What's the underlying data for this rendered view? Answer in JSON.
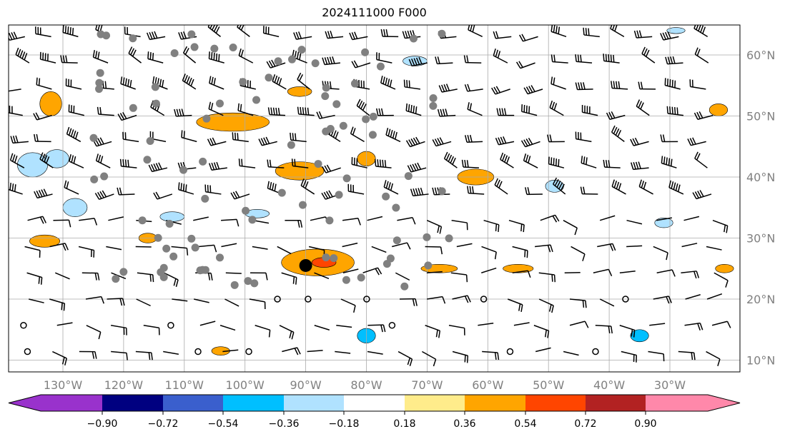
{
  "chart_data": {
    "type": "map",
    "title": "2024111000 F000",
    "projection": "PlateCarree",
    "extent_lon": [
      -139,
      -18.5
    ],
    "extent_lat": [
      8,
      65
    ],
    "lat_ticks": [
      {
        "value": 60,
        "label": "60°N"
      },
      {
        "value": 50,
        "label": "50°N"
      },
      {
        "value": 40,
        "label": "40°N"
      },
      {
        "value": 30,
        "label": "30°N"
      },
      {
        "value": 20,
        "label": "20°N"
      },
      {
        "value": 10,
        "label": "10°N"
      }
    ],
    "lon_ticks": [
      {
        "value": -130,
        "label": "130°W"
      },
      {
        "value": -120,
        "label": "120°W"
      },
      {
        "value": -110,
        "label": "110°W"
      },
      {
        "value": -100,
        "label": "100°W"
      },
      {
        "value": -90,
        "label": "90°W"
      },
      {
        "value": -80,
        "label": "80°W"
      },
      {
        "value": -70,
        "label": "70°W"
      },
      {
        "value": -60,
        "label": "60°W"
      },
      {
        "value": -50,
        "label": "50°W"
      },
      {
        "value": -40,
        "label": "40°W"
      },
      {
        "value": -30,
        "label": "30°W"
      }
    ],
    "grid": true,
    "colorbar": {
      "orientation": "horizontal",
      "placement": "bottom",
      "extend": "both",
      "levels": [
        -0.9,
        -0.72,
        -0.54,
        -0.36,
        -0.18,
        0.18,
        0.36,
        0.54,
        0.72,
        0.9
      ],
      "tick_labels": [
        "−0.90",
        "−0.72",
        "−0.54",
        "−0.36",
        "−0.18",
        "0.18",
        "0.36",
        "0.54",
        "0.72",
        "0.90"
      ],
      "colors": [
        "#9932cc",
        "#000080",
        "#3a5fcd",
        "#00bfff",
        "#b0e2ff",
        "#ffffff",
        "#ffec8b",
        "#ffa500",
        "#ff4500",
        "#b22222",
        "#ff88aa"
      ]
    },
    "highlight_point": {
      "lon": -90,
      "lat": 25.5
    },
    "positive_regions": [
      {
        "lon": -88,
        "lat": 26,
        "rx": 6,
        "ry": 2.2,
        "level": 0.36
      },
      {
        "lon": -87,
        "lat": 26,
        "rx": 2,
        "ry": 0.8,
        "level": 0.54
      },
      {
        "lon": -102,
        "lat": 49,
        "rx": 6,
        "ry": 1.5,
        "level": 0.36
      },
      {
        "lon": -91,
        "lat": 41,
        "rx": 4,
        "ry": 1.5,
        "level": 0.36
      },
      {
        "lon": -80,
        "lat": 43,
        "rx": 1.5,
        "ry": 1.2,
        "level": 0.36
      },
      {
        "lon": -62,
        "lat": 40,
        "rx": 3,
        "ry": 1.3,
        "level": 0.36
      },
      {
        "lon": -133,
        "lat": 29.5,
        "rx": 2.5,
        "ry": 1,
        "level": 0.36
      },
      {
        "lon": -116,
        "lat": 30,
        "rx": 1.5,
        "ry": 0.8,
        "level": 0.36
      },
      {
        "lon": -68,
        "lat": 25,
        "rx": 3,
        "ry": 0.7,
        "level": 0.36
      },
      {
        "lon": -55,
        "lat": 25,
        "rx": 2.5,
        "ry": 0.7,
        "level": 0.36
      },
      {
        "lon": -132,
        "lat": 52,
        "rx": 1.8,
        "ry": 2,
        "level": 0.36
      },
      {
        "lon": -22,
        "lat": 51,
        "rx": 1.5,
        "ry": 1,
        "level": 0.36
      },
      {
        "lon": -21,
        "lat": 25,
        "rx": 1.5,
        "ry": 0.7,
        "level": 0.36
      },
      {
        "lon": -91,
        "lat": 54,
        "rx": 2,
        "ry": 0.8,
        "level": 0.36
      },
      {
        "lon": -104,
        "lat": 11.5,
        "rx": 1.5,
        "ry": 0.7,
        "level": 0.36
      }
    ],
    "negative_regions": [
      {
        "lon": -135,
        "lat": 42,
        "rx": 2.5,
        "ry": 2,
        "level": -0.36
      },
      {
        "lon": -131,
        "lat": 43,
        "rx": 2,
        "ry": 1.5,
        "level": -0.36
      },
      {
        "lon": -128,
        "lat": 35,
        "rx": 2,
        "ry": 1.5,
        "level": -0.36
      },
      {
        "lon": -112,
        "lat": 33.5,
        "rx": 2,
        "ry": 0.8,
        "level": -0.36
      },
      {
        "lon": -98,
        "lat": 34,
        "rx": 2,
        "ry": 0.7,
        "level": -0.36
      },
      {
        "lon": -72,
        "lat": 59,
        "rx": 2,
        "ry": 0.8,
        "level": -0.36
      },
      {
        "lon": -49,
        "lat": 38.5,
        "rx": 1.5,
        "ry": 1,
        "level": -0.36
      },
      {
        "lon": -31,
        "lat": 32.5,
        "rx": 1.5,
        "ry": 0.8,
        "level": -0.36
      },
      {
        "lon": -80,
        "lat": 14,
        "rx": 1.5,
        "ry": 1.2,
        "level": -0.54
      },
      {
        "lon": -35,
        "lat": 14,
        "rx": 1.5,
        "ry": 1,
        "level": -0.54
      },
      {
        "lon": -29,
        "lat": 64,
        "rx": 1.5,
        "ry": 0.5,
        "level": -0.36
      }
    ]
  }
}
